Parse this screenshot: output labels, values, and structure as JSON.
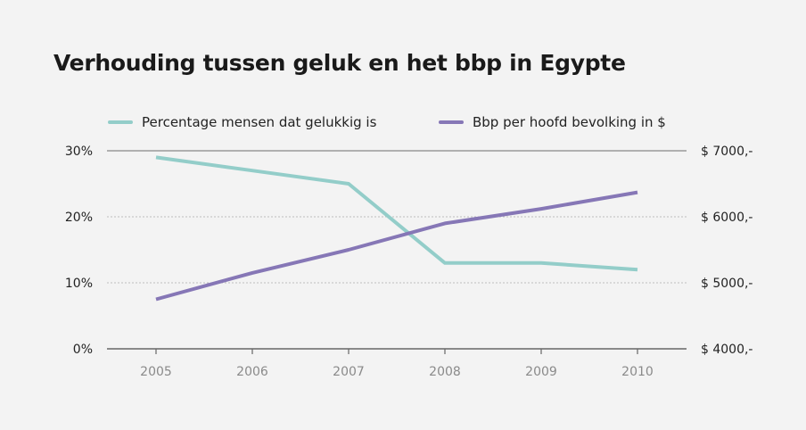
{
  "chart_data": {
    "type": "line",
    "title": "Verhouding tussen geluk en het bbp in Egypte",
    "x": [
      "2005",
      "2006",
      "2007",
      "2008",
      "2009",
      "2010"
    ],
    "series": [
      {
        "name": "Percentage mensen dat gelukkig is",
        "axis": "left",
        "color": "#93cdc9",
        "values": [
          29,
          27,
          25,
          13,
          13,
          12
        ]
      },
      {
        "name": "Bbp per hoofd bevolking in $",
        "axis": "right",
        "color": "#8677b6",
        "values": [
          4750,
          5150,
          5500,
          5900,
          6120,
          6370
        ]
      }
    ],
    "y_left": {
      "ylim": [
        0,
        30
      ],
      "ticks": [
        0,
        10,
        20,
        30
      ],
      "tick_labels": [
        "0%",
        "10%",
        "20%",
        "30%"
      ]
    },
    "y_right": {
      "ylim": [
        4000,
        7000
      ],
      "ticks": [
        4000,
        5000,
        6000,
        7000
      ],
      "tick_labels": [
        "$ 4000,-",
        "$ 5000,-",
        "$ 6000,-",
        "$ 7000,-"
      ]
    },
    "grid": "horizontal dotted",
    "legend_position": "top"
  }
}
